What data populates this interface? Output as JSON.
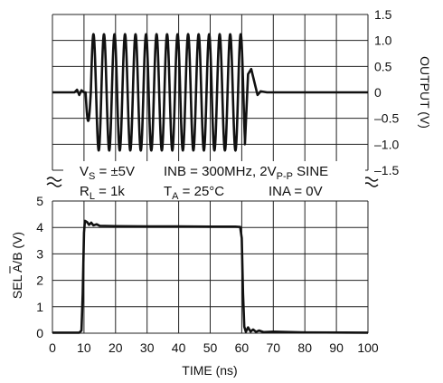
{
  "chart_data": [
    {
      "type": "line",
      "panel": "top",
      "ylabel": "OUTPUT (V)",
      "ylim": [
        -1.5,
        1.5
      ],
      "yticks": [
        1.5,
        1.0,
        0.5,
        0,
        -0.5,
        -1.0,
        -1.5
      ],
      "ytick_labels": [
        "1.5",
        "1.0",
        "0.5",
        "0",
        "–0.5",
        "–1.0",
        "–1.5"
      ],
      "yaxis_position": "right",
      "xlim": [
        0,
        100
      ],
      "grid": true,
      "series": [
        {
          "description_key": "output",
          "baseline": 0,
          "burst_start_ns": 10.5,
          "burst_end_ns": 61,
          "frequency_mhz": 300,
          "amplitude_v": 1.12,
          "pre_ringing": [
            [
              0,
              0
            ],
            [
              7,
              0
            ],
            [
              7.8,
              0.05
            ],
            [
              8.5,
              -0.05
            ],
            [
              9.2,
              0.04
            ],
            [
              10,
              0
            ]
          ],
          "post_settle": [
            [
              61,
              -1.0
            ],
            [
              62,
              0.35
            ],
            [
              63,
              0.45
            ],
            [
              64,
              0.2
            ],
            [
              65,
              -0.05
            ],
            [
              66,
              0.02
            ],
            [
              68,
              0
            ],
            [
              100,
              0
            ]
          ]
        }
      ]
    },
    {
      "type": "line",
      "panel": "bottom",
      "ylabel": "SEL A/B (V)",
      "ylim": [
        0,
        5
      ],
      "yticks": [
        0,
        1,
        2,
        3,
        4,
        5
      ],
      "ytick_labels": [
        "0",
        "1",
        "2",
        "3",
        "4",
        "5"
      ],
      "yaxis_position": "left",
      "xlabel": "TIME (ns)",
      "xlim": [
        0,
        100
      ],
      "xticks": [
        0,
        10,
        20,
        30,
        40,
        50,
        60,
        70,
        80,
        90,
        100
      ],
      "xtick_labels": [
        "0",
        "10",
        "20",
        "30",
        "40",
        "50",
        "60",
        "70",
        "80",
        "90",
        "100"
      ],
      "grid": true,
      "series": [
        {
          "description_key": "select",
          "points": [
            [
              0,
              0.02
            ],
            [
              8.5,
              0.02
            ],
            [
              9.2,
              0.1
            ],
            [
              9.6,
              1.5
            ],
            [
              10.0,
              3.8
            ],
            [
              10.3,
              4.25
            ],
            [
              11,
              4.2
            ],
            [
              11.6,
              4.1
            ],
            [
              12.3,
              4.18
            ],
            [
              13,
              4.08
            ],
            [
              14,
              4.12
            ],
            [
              15,
              4.06
            ],
            [
              20,
              4.05
            ],
            [
              30,
              4.04
            ],
            [
              40,
              4.04
            ],
            [
              50,
              4.03
            ],
            [
              58,
              4.03
            ],
            [
              59.5,
              4.02
            ],
            [
              60,
              3.6
            ],
            [
              60.4,
              1.5
            ],
            [
              60.8,
              0.25
            ],
            [
              61.3,
              0.05
            ],
            [
              62,
              0.22
            ],
            [
              62.8,
              0.06
            ],
            [
              63.6,
              0.14
            ],
            [
              64.5,
              0.05
            ],
            [
              65.5,
              0.1
            ],
            [
              67,
              0.04
            ],
            [
              70,
              0.06
            ],
            [
              80,
              0.03
            ],
            [
              100,
              0.02
            ]
          ]
        }
      ]
    }
  ],
  "conditions": {
    "line1_left_prefix": "V",
    "line1_left_sub": "S",
    "line1_left_value": " = ±5V",
    "line1_right_prefix": "INB = 300MHz, 2V",
    "line1_right_sub": "P-P",
    "line1_right_suffix": " SINE",
    "line2_left_prefix": "R",
    "line2_left_sub": "L",
    "line2_left_value": " = 1k",
    "line2_mid_prefix": "T",
    "line2_mid_sub": "A",
    "line2_mid_value": " = 25°C",
    "line2_right": "INA = 0V"
  },
  "colors": {
    "grid": "#222222",
    "trace": "#111111"
  }
}
